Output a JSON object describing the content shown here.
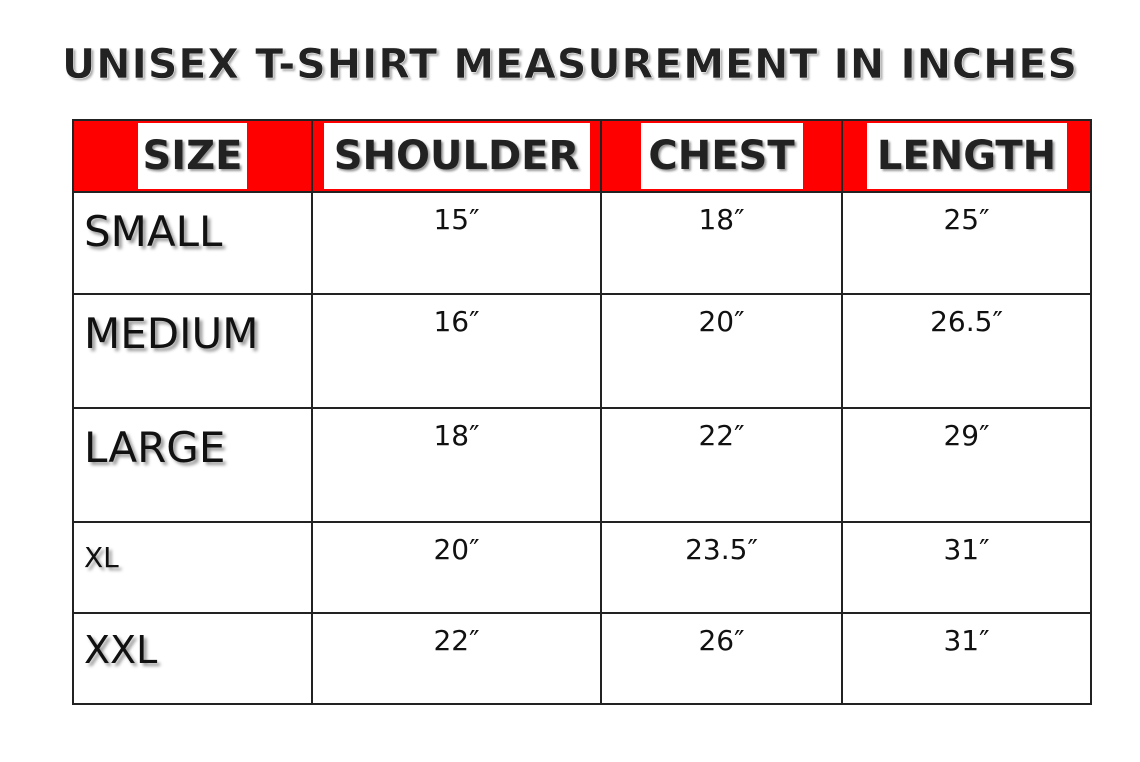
{
  "title": "UNISEX T-SHIRT MEASUREMENT IN INCHES",
  "colors": {
    "header_bg": "#ff0000",
    "border": "#222222"
  },
  "table": {
    "headers": [
      "SIZE",
      "SHOULDER",
      "CHEST",
      "LENGTH"
    ],
    "rows": [
      {
        "size": "SMALL",
        "shoulder": "15″",
        "chest": "18″",
        "length": "25″"
      },
      {
        "size": "MEDIUM",
        "shoulder": "16″",
        "chest": "20″",
        "length": "26.5″"
      },
      {
        "size": "LARGE",
        "shoulder": "18″",
        "chest": "22″",
        "length": "29″"
      },
      {
        "size": "XL",
        "shoulder": "20″",
        "chest": "23.5″",
        "length": "31″"
      },
      {
        "size": "XXL",
        "shoulder": "22″",
        "chest": "26″",
        "length": "31″"
      }
    ]
  }
}
